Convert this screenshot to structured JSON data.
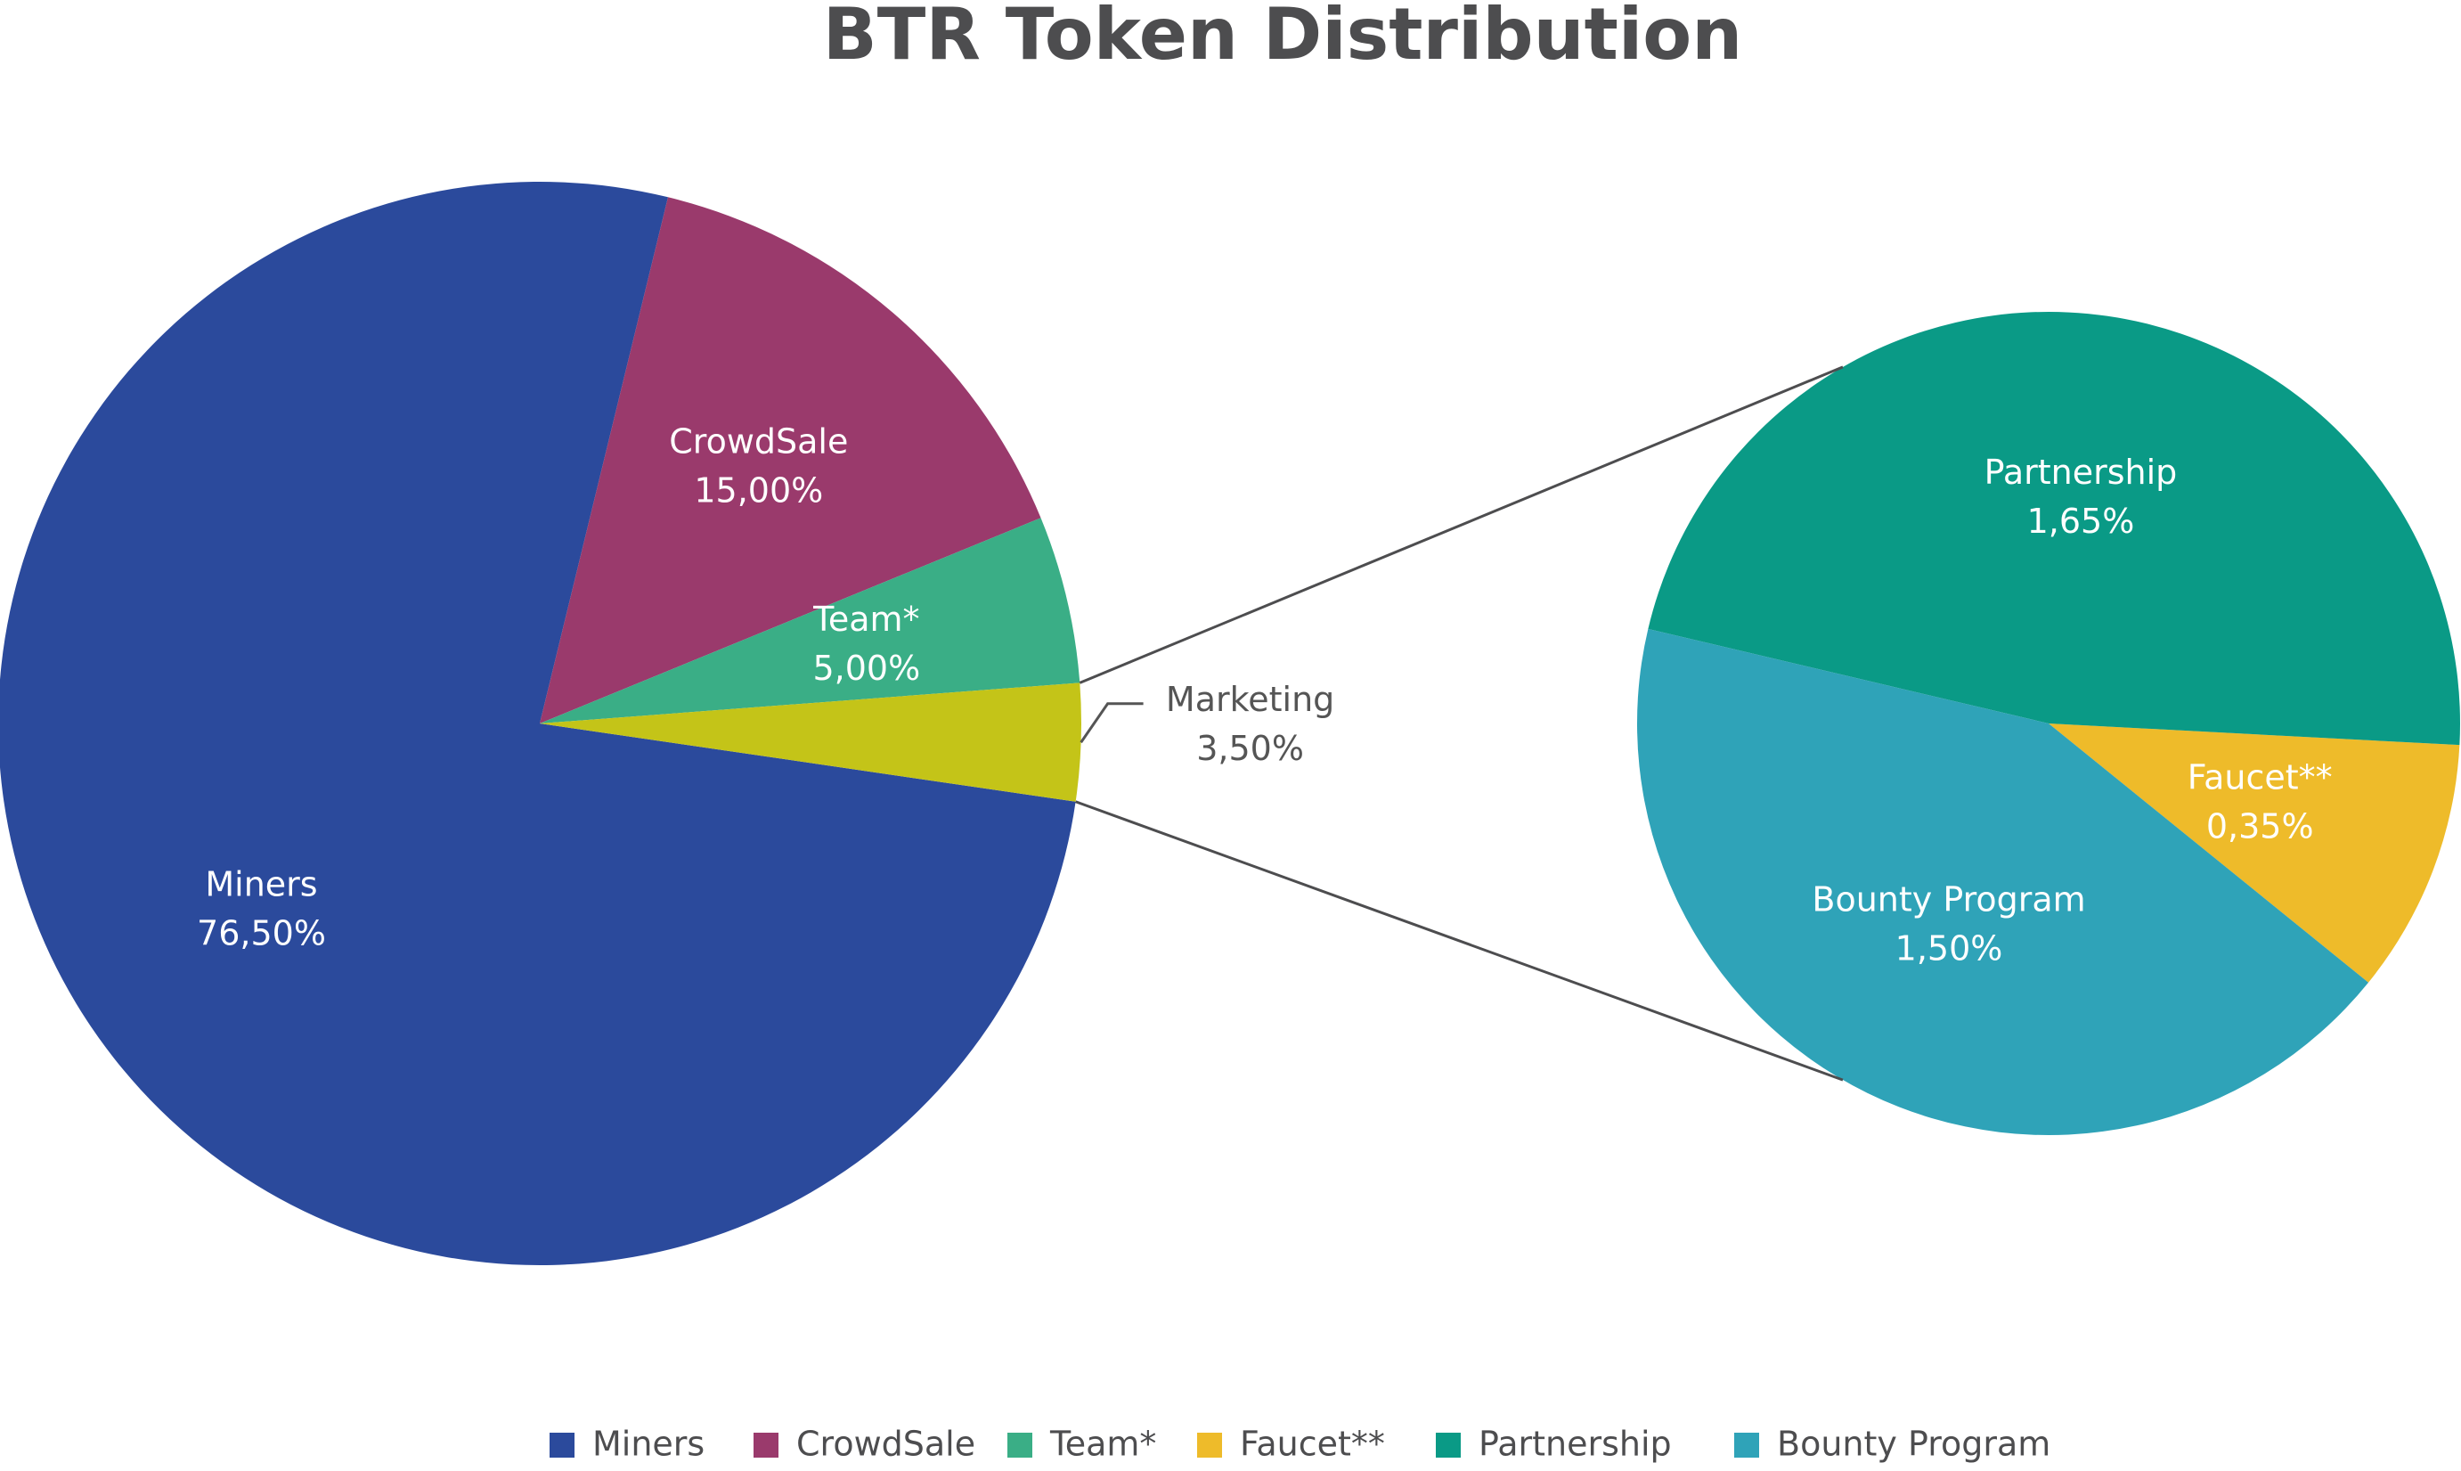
{
  "chart_data": [
    {
      "type": "pie",
      "title": "BTR Token Distribution",
      "categories": [
        "Miners",
        "CrowdSale",
        "Team*",
        "Marketing"
      ],
      "values": [
        76.5,
        15,
        5,
        3.5
      ],
      "value_labels": [
        "76,50%",
        "15,00%",
        "5,00%",
        "3,50%"
      ],
      "colors": [
        "#2b4a9c",
        "#9a3a6c",
        "#3aae86",
        "#c4c418"
      ]
    },
    {
      "type": "pie",
      "categories": [
        "Faucet**",
        "Partnership",
        "Bounty Program"
      ],
      "values": [
        0.35,
        1.65,
        1.5
      ],
      "value_labels": [
        "0,35%",
        "1,65%",
        "1,50%"
      ],
      "colors": [
        "#eebb2a",
        "#0a9a86",
        "#2fa3b8"
      ]
    }
  ]
}
